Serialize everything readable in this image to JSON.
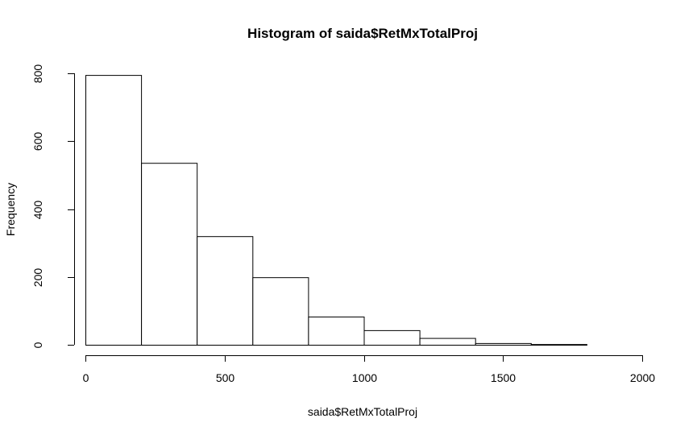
{
  "chart_data": {
    "type": "bar",
    "title": "Histogram of saida$RetMxTotalProj",
    "xlabel": "saida$RetMxTotalProj",
    "ylabel": "Frequency",
    "bins": [
      {
        "start": 0,
        "end": 200,
        "count": 795
      },
      {
        "start": 200,
        "end": 400,
        "count": 536
      },
      {
        "start": 400,
        "end": 600,
        "count": 320
      },
      {
        "start": 600,
        "end": 800,
        "count": 199
      },
      {
        "start": 800,
        "end": 1000,
        "count": 83
      },
      {
        "start": 1000,
        "end": 1200,
        "count": 43
      },
      {
        "start": 1200,
        "end": 1400,
        "count": 20
      },
      {
        "start": 1400,
        "end": 1600,
        "count": 5
      },
      {
        "start": 1600,
        "end": 1800,
        "count": 2
      },
      {
        "start": 1800,
        "end": 2000,
        "count": 0
      }
    ],
    "xticks": [
      "0",
      "500",
      "1000",
      "1500",
      "2000"
    ],
    "yticks": [
      "0",
      "200",
      "400",
      "600",
      "800"
    ],
    "xlim": [
      0,
      2000
    ],
    "ylim": [
      0,
      800
    ],
    "grid": false,
    "colors": {
      "fill": "#ffffff",
      "stroke": "#000000"
    }
  }
}
